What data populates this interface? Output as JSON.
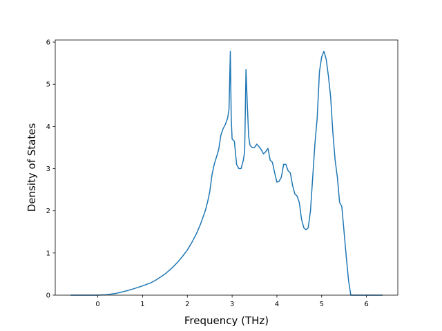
{
  "chart_data": {
    "type": "line",
    "title": "",
    "xlabel": "Frequency (THz)",
    "ylabel": "Density of States",
    "xlim": [
      -0.95,
      6.7
    ],
    "ylim": [
      0,
      6.05
    ],
    "xticks": [
      0,
      1,
      2,
      3,
      4,
      5,
      6
    ],
    "yticks": [
      0,
      1,
      2,
      3,
      4,
      5,
      6
    ],
    "grid": false,
    "legend": "none",
    "series": [
      {
        "color": "#1f77b4",
        "x": [
          -0.6,
          -0.4,
          -0.2,
          0.0,
          0.2,
          0.4,
          0.6,
          0.8,
          1.0,
          1.2,
          1.3,
          1.4,
          1.5,
          1.6,
          1.7,
          1.8,
          1.9,
          2.0,
          2.1,
          2.2,
          2.3,
          2.4,
          2.45,
          2.5,
          2.55,
          2.6,
          2.7,
          2.75,
          2.8,
          2.85,
          2.9,
          2.93,
          2.96,
          2.98,
          3.0,
          3.05,
          3.1,
          3.15,
          3.2,
          3.25,
          3.28,
          3.31,
          3.34,
          3.37,
          3.4,
          3.45,
          3.5,
          3.55,
          3.6,
          3.65,
          3.7,
          3.75,
          3.8,
          3.85,
          3.9,
          3.95,
          4.0,
          4.05,
          4.1,
          4.15,
          4.2,
          4.25,
          4.3,
          4.35,
          4.4,
          4.45,
          4.5,
          4.55,
          4.6,
          4.65,
          4.7,
          4.75,
          4.8,
          4.85,
          4.9,
          4.95,
          5.0,
          5.05,
          5.1,
          5.15,
          5.2,
          5.25,
          5.3,
          5.35,
          5.4,
          5.45,
          5.5,
          5.55,
          5.6,
          5.65,
          5.7,
          5.75,
          5.8,
          5.85,
          5.9,
          6.0,
          6.1,
          6.2,
          6.35
        ],
        "y": [
          0,
          0,
          0,
          0,
          0.01,
          0.04,
          0.09,
          0.15,
          0.22,
          0.3,
          0.36,
          0.43,
          0.5,
          0.59,
          0.69,
          0.8,
          0.93,
          1.07,
          1.25,
          1.45,
          1.7,
          2.0,
          2.2,
          2.45,
          2.85,
          3.1,
          3.45,
          3.8,
          3.95,
          4.05,
          4.2,
          4.4,
          5.78,
          4.2,
          3.7,
          3.65,
          3.1,
          3.0,
          3.0,
          3.2,
          3.4,
          5.35,
          4.5,
          3.75,
          3.55,
          3.5,
          3.5,
          3.58,
          3.52,
          3.45,
          3.35,
          3.4,
          3.48,
          3.2,
          3.15,
          2.9,
          2.68,
          2.7,
          2.8,
          3.1,
          3.1,
          2.95,
          2.9,
          2.6,
          2.4,
          2.35,
          2.2,
          1.8,
          1.6,
          1.55,
          1.6,
          2.0,
          2.8,
          3.6,
          4.2,
          5.3,
          5.65,
          5.78,
          5.6,
          5.2,
          4.7,
          3.85,
          3.2,
          2.8,
          2.2,
          2.1,
          1.5,
          0.9,
          0.35,
          0,
          0,
          0,
          0,
          0,
          0,
          0,
          0,
          0,
          0
        ]
      }
    ]
  }
}
